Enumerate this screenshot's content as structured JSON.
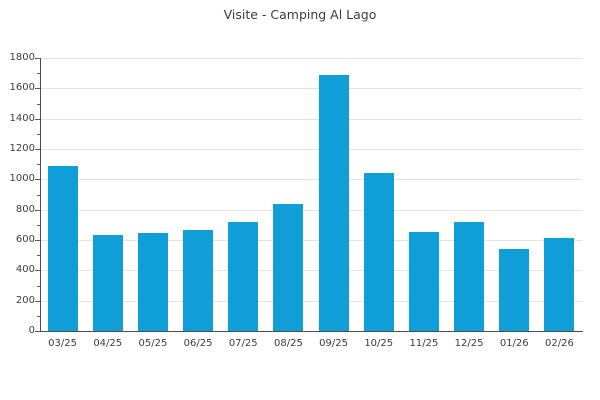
{
  "chart_data": {
    "type": "bar",
    "title": "Visite - Camping Al Lago",
    "categories": [
      "03/25",
      "04/25",
      "05/25",
      "06/25",
      "07/25",
      "08/25",
      "09/25",
      "10/25",
      "11/25",
      "12/25",
      "01/26",
      "02/26"
    ],
    "values": [
      1085,
      630,
      645,
      665,
      720,
      840,
      1690,
      1045,
      655,
      720,
      540,
      610
    ],
    "xlabel": "",
    "ylabel": "",
    "ylim": [
      0,
      1800
    ],
    "ytick_step": 200,
    "y_minor_tick_step": 100,
    "grid": "horizontal-major",
    "legend_position": "none",
    "colors": {
      "bar": "#0f9ed8",
      "gridline": "#e3e3e3",
      "axis": "#4d4d4d",
      "tick": "#5a5a5a",
      "text": "#3c3c3c",
      "background": "#ffffff"
    }
  }
}
